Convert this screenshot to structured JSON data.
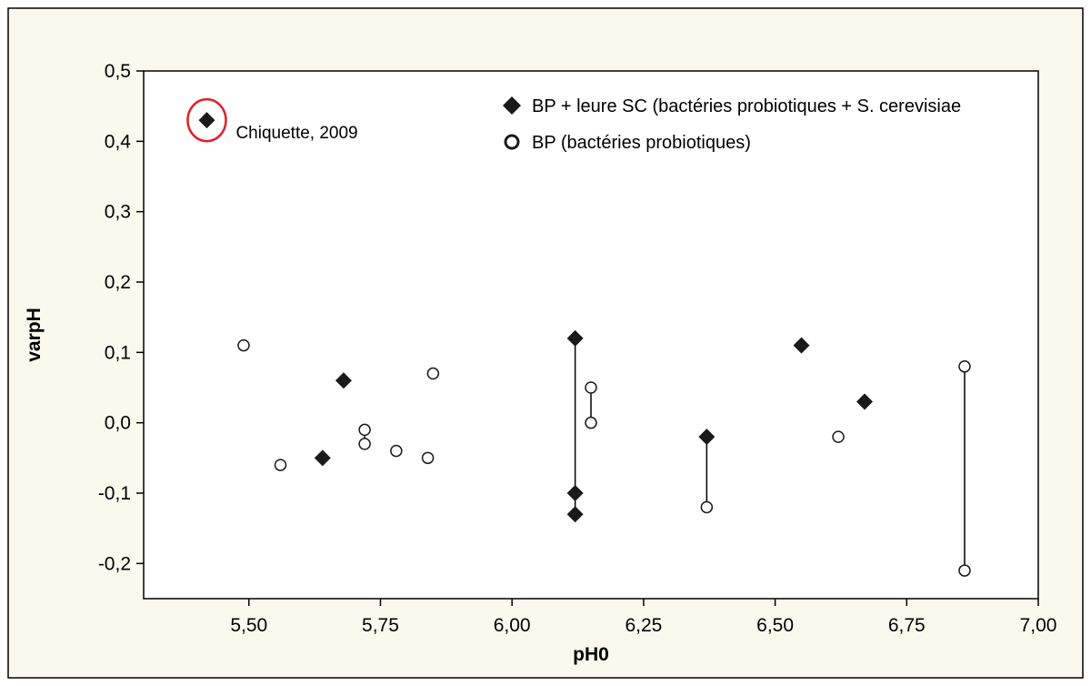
{
  "colors": {
    "figure_background": "#fbf8ee",
    "plot_background": "#ffffff",
    "axis": "#000000",
    "marker": "#1a1a1a",
    "highlight_ring": "#e0202a"
  },
  "chart_data": {
    "type": "scatter",
    "xlabel": "pH0",
    "ylabel": "varpH",
    "xlim": [
      5.3,
      7.0
    ],
    "ylim": [
      -0.25,
      0.5
    ],
    "x_ticks": [
      5.5,
      5.75,
      6.0,
      6.25,
      6.5,
      6.75,
      7.0
    ],
    "x_tick_labels": [
      "5,50",
      "5,75",
      "6,00",
      "6,25",
      "6,50",
      "6,75",
      "7,00"
    ],
    "y_ticks": [
      -0.2,
      -0.1,
      0.0,
      0.1,
      0.2,
      0.3,
      0.4,
      0.5
    ],
    "y_tick_labels": [
      "-0,2",
      "-0,1",
      "0,0",
      "0,1",
      "0,2",
      "0,3",
      "0,4",
      "0,5"
    ],
    "grid": false,
    "legend_position": "top-right",
    "series": [
      {
        "name": "BP + leure SC (bactéries probiotiques + S. cerevisiae",
        "marker": "filled-diamond",
        "points": [
          {
            "x": 5.42,
            "y": 0.43
          },
          {
            "x": 5.64,
            "y": -0.05
          },
          {
            "x": 5.68,
            "y": 0.06
          },
          {
            "x": 6.12,
            "y": 0.12
          },
          {
            "x": 6.12,
            "y": -0.1
          },
          {
            "x": 6.12,
            "y": -0.13
          },
          {
            "x": 6.37,
            "y": -0.02
          },
          {
            "x": 6.55,
            "y": 0.11
          },
          {
            "x": 6.67,
            "y": 0.03
          }
        ]
      },
      {
        "name": "BP (bactéries probiotiques)",
        "marker": "open-circle",
        "points": [
          {
            "x": 5.49,
            "y": 0.11
          },
          {
            "x": 5.56,
            "y": -0.06
          },
          {
            "x": 5.72,
            "y": -0.01
          },
          {
            "x": 5.72,
            "y": -0.03
          },
          {
            "x": 5.78,
            "y": -0.04
          },
          {
            "x": 5.84,
            "y": -0.05
          },
          {
            "x": 5.85,
            "y": 0.07
          },
          {
            "x": 6.15,
            "y": 0.05
          },
          {
            "x": 6.15,
            "y": 0.0
          },
          {
            "x": 6.37,
            "y": -0.12
          },
          {
            "x": 6.62,
            "y": -0.02
          },
          {
            "x": 6.86,
            "y": 0.08
          },
          {
            "x": 6.86,
            "y": -0.21
          }
        ]
      }
    ],
    "connectors": [
      {
        "x": 5.72,
        "y1": -0.01,
        "y2": -0.03
      },
      {
        "x": 6.12,
        "y1": 0.12,
        "y2": -0.13
      },
      {
        "x": 6.15,
        "y1": 0.05,
        "y2": 0.0
      },
      {
        "x": 6.37,
        "y1": -0.02,
        "y2": -0.12
      },
      {
        "x": 6.86,
        "y1": 0.08,
        "y2": -0.21
      }
    ],
    "annotations": [
      {
        "text": "Chiquette, 2009",
        "x": 5.42,
        "y": 0.43,
        "highlighted": true
      }
    ]
  }
}
